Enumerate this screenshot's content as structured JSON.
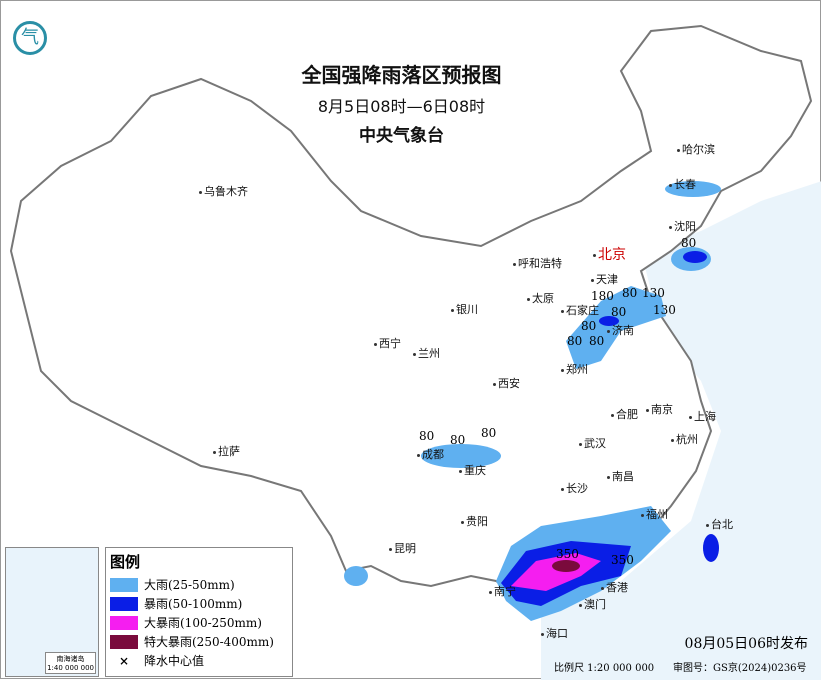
{
  "header": {
    "title": "全国强降雨落区预报图",
    "period": "8月5日08时—6日08时",
    "issuer": "中央气象台"
  },
  "cities": [
    {
      "name": "乌鲁木齐"
    },
    {
      "name": "哈尔滨"
    },
    {
      "name": "长春"
    },
    {
      "name": "沈阳"
    },
    {
      "name": "北京",
      "capital": true
    },
    {
      "name": "呼和浩特"
    },
    {
      "name": "天津"
    },
    {
      "name": "太原"
    },
    {
      "name": "石家庄"
    },
    {
      "name": "济南"
    },
    {
      "name": "银川"
    },
    {
      "name": "西宁"
    },
    {
      "name": "兰州"
    },
    {
      "name": "郑州"
    },
    {
      "name": "西安"
    },
    {
      "name": "合肥"
    },
    {
      "name": "南京"
    },
    {
      "name": "上海"
    },
    {
      "name": "杭州"
    },
    {
      "name": "武汉"
    },
    {
      "name": "成都"
    },
    {
      "name": "重庆"
    },
    {
      "name": "拉萨"
    },
    {
      "name": "长沙"
    },
    {
      "name": "南昌"
    },
    {
      "name": "贵阳"
    },
    {
      "name": "福州"
    },
    {
      "name": "台北"
    },
    {
      "name": "昆明"
    },
    {
      "name": "南宁"
    },
    {
      "name": "澳门"
    },
    {
      "name": "香港"
    },
    {
      "name": "海口"
    }
  ],
  "rain_center_values": [
    "80",
    "180",
    "80",
    "130",
    "130",
    "80",
    "80",
    "80",
    "80",
    "80",
    "80",
    "80",
    "350",
    "350"
  ],
  "legend": {
    "title": "图例",
    "items": [
      {
        "label": "大雨(25-50mm)",
        "color": "#5fb0f0"
      },
      {
        "label": "暴雨(50-100mm)",
        "color": "#0a1ee6"
      },
      {
        "label": "大暴雨(100-250mm)",
        "color": "#f51ef0"
      },
      {
        "label": "特大暴雨(250-400mm)",
        "color": "#7a0a3c"
      },
      {
        "label": "降水中心值",
        "symbol": "×"
      }
    ]
  },
  "inset": {
    "label": "南海诸岛",
    "scale": "1:40 000 000"
  },
  "footer": {
    "issued": "08月05日06时发布",
    "scale": "比例尺 1:20 000 000",
    "approval": "审图号：GS京(2024)0236号"
  }
}
